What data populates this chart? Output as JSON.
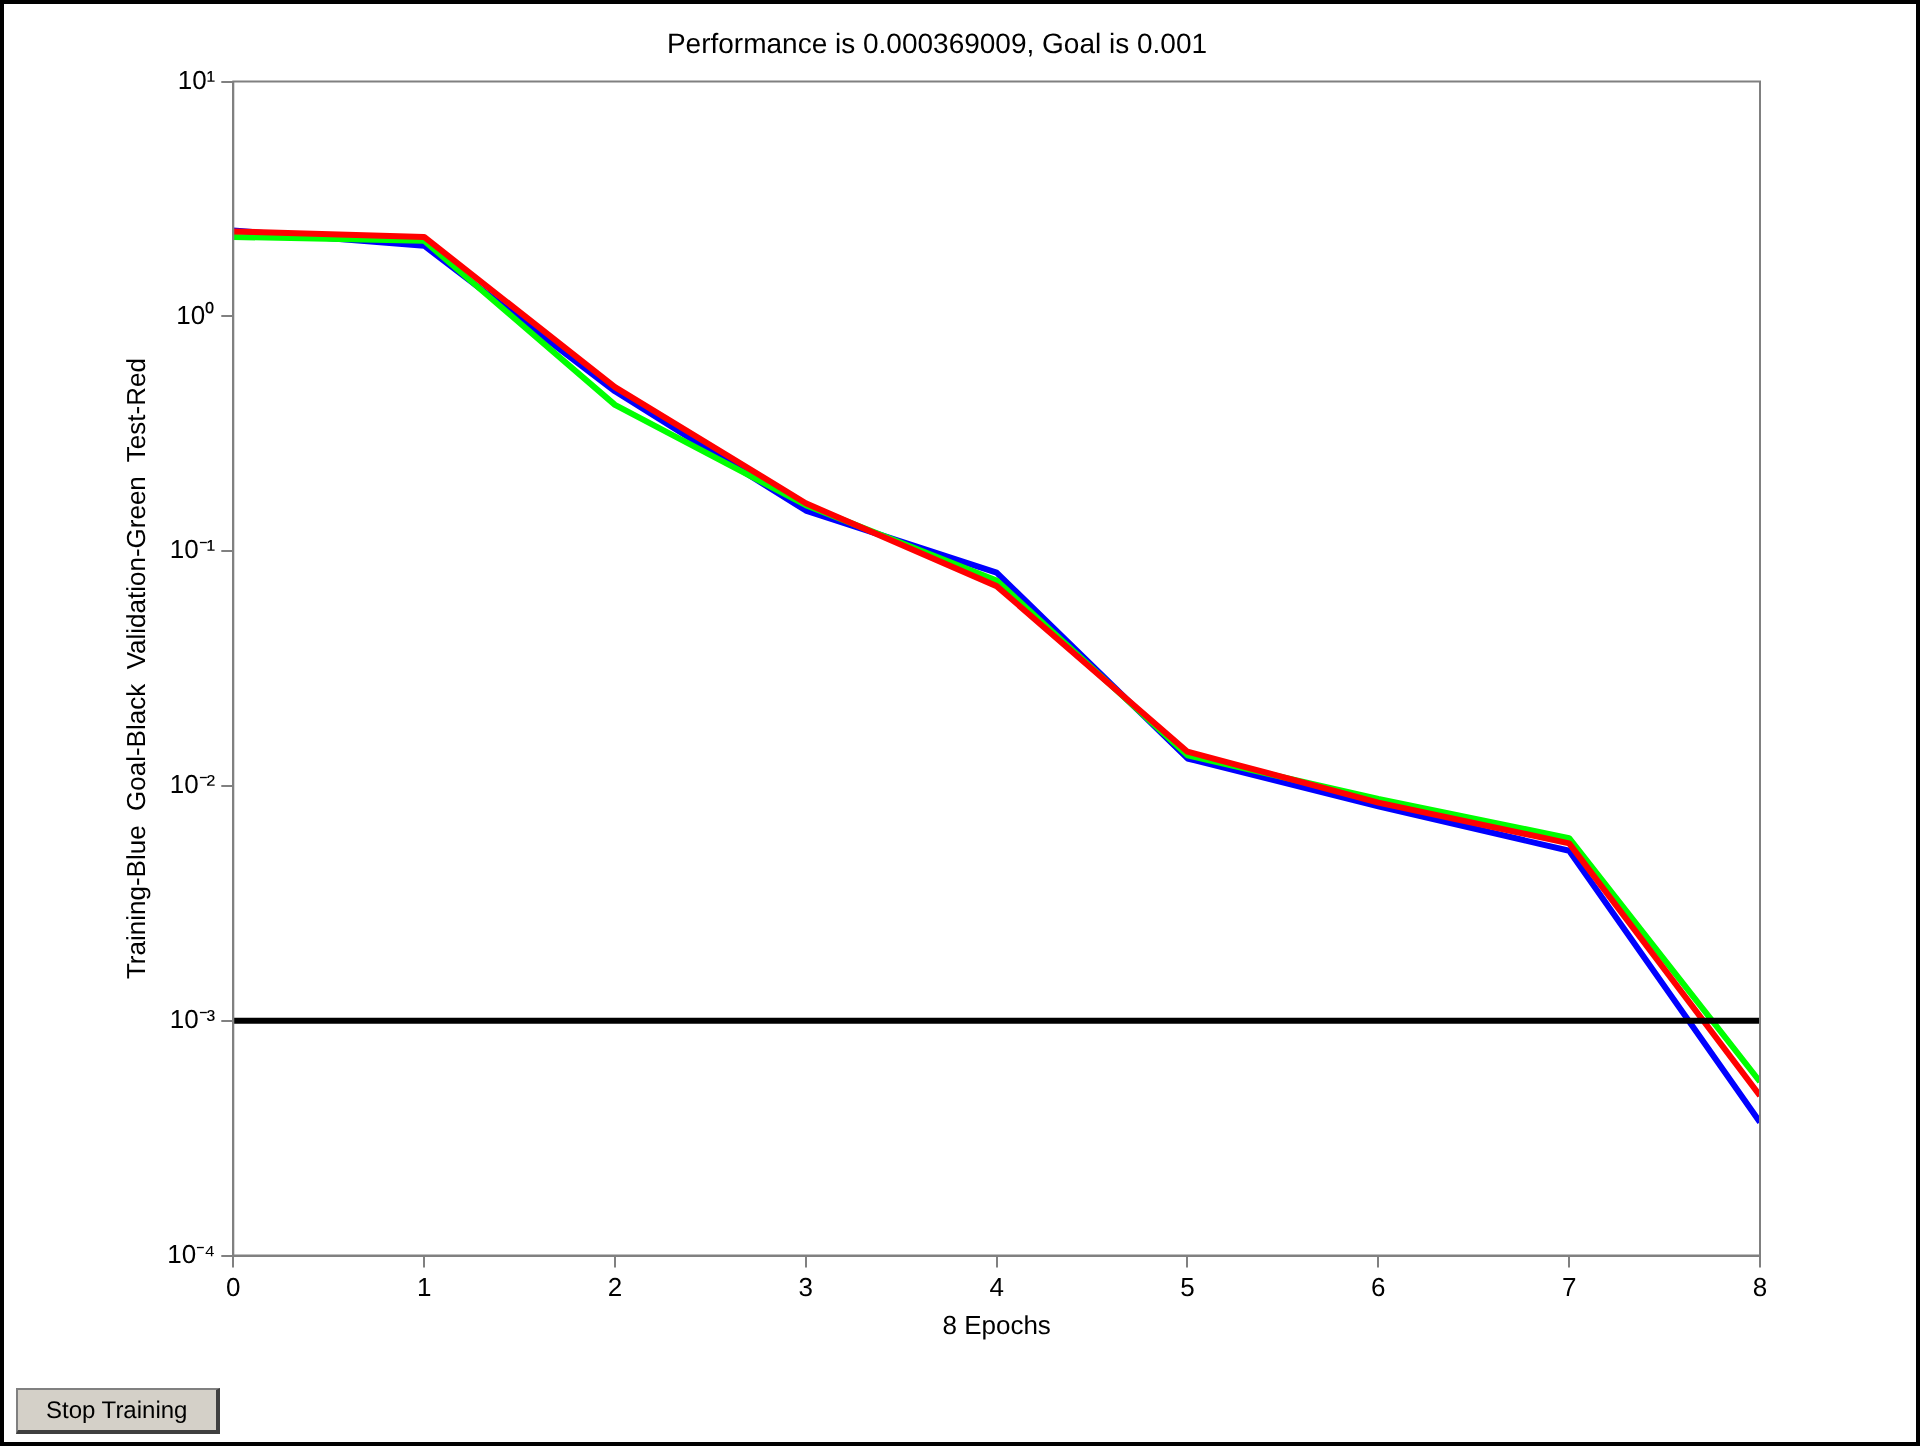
{
  "chart_data": {
    "type": "line",
    "title": "Performance is 0.000369009, Goal is 0.001",
    "xlabel": "8 Epochs",
    "ylabel": "Training-Blue  Goal-Black  Validation-Green  Test-Red",
    "x": [
      0,
      1,
      2,
      3,
      4,
      5,
      6,
      7,
      8
    ],
    "series": [
      {
        "color": "#ff0000",
        "values": [
          2.3,
          2.18,
          0.5,
          0.16,
          0.071,
          0.014,
          0.0085,
          0.0057,
          0.00048
        ]
      },
      {
        "color": "#00ff00",
        "values": [
          2.18,
          2.1,
          0.42,
          0.157,
          0.075,
          0.0135,
          0.0088,
          0.006,
          0.00055
        ]
      },
      {
        "color": "#0000ff",
        "values": [
          2.32,
          2.0,
          0.48,
          0.149,
          0.081,
          0.0131,
          0.0082,
          0.0053,
          0.00037
        ]
      }
    ],
    "xlim": [
      0,
      8
    ],
    "xticks": [
      0,
      1,
      2,
      3,
      4,
      5,
      6,
      7,
      8
    ],
    "ylim": [
      0.0001,
      10
    ],
    "log": "y",
    "yticks": [
      {
        "value": 0.0001,
        "label": "10⁻⁴"
      },
      {
        "value": 0.001,
        "label": "10⁻³"
      },
      {
        "value": 0.01,
        "label": "10⁻²"
      },
      {
        "value": 0.1,
        "label": "10⁻¹"
      },
      {
        "value": 1,
        "label": "10⁰"
      },
      {
        "value": 10,
        "label": "10¹"
      }
    ],
    "ref_lines": [
      {
        "axis": "y",
        "value": 0.001,
        "color": "#000000"
      }
    ],
    "annotations": [
      "Stop Training"
    ],
    "grid": false,
    "legend": false,
    "marker": "none",
    "line_style": "solid"
  }
}
